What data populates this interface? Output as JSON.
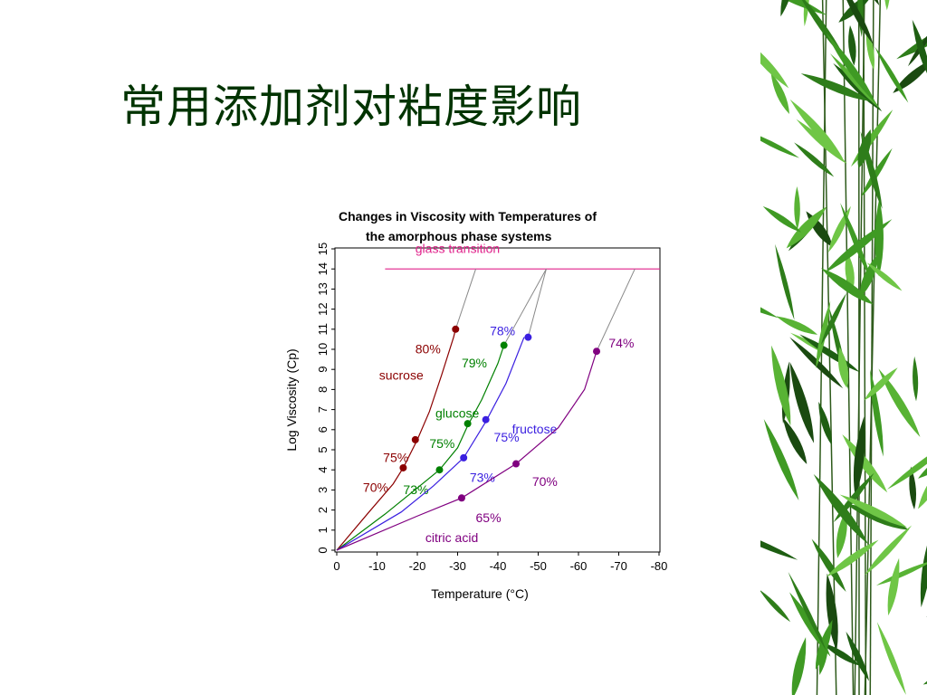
{
  "slide": {
    "title": "常用添加剂对粘度影响"
  },
  "chart_data": {
    "type": "line",
    "title_line1": "Changes in Viscosity with Temperatures of",
    "title_line2": "the amorphous phase systems",
    "xlabel": "Temperature (°C)",
    "ylabel": "Log Viscosity (Cp)",
    "xlim": [
      0,
      -80
    ],
    "ylim": [
      0,
      15
    ],
    "x_ticks": [
      0,
      -10,
      -20,
      -30,
      -40,
      -50,
      -60,
      -70,
      -80
    ],
    "y_ticks": [
      0,
      1,
      2,
      3,
      4,
      5,
      6,
      7,
      8,
      9,
      10,
      11,
      12,
      13,
      14,
      15
    ],
    "glass_transition": {
      "label": "glass transition",
      "y": 14,
      "x_from": -12,
      "x_to": -80,
      "color": "#e0218a"
    },
    "series": [
      {
        "name": "sucrose",
        "color": "#8b0000",
        "label_x": -10.5,
        "label_y": 8.5,
        "curve": [
          [
            0,
            0
          ],
          [
            -8,
            1.9
          ],
          [
            -14,
            3.3
          ],
          [
            -16.5,
            4.1
          ],
          [
            -20,
            5.5
          ],
          [
            -23,
            6.9
          ],
          [
            -26,
            8.7
          ],
          [
            -29,
            10.6
          ],
          [
            -29.5,
            11
          ]
        ],
        "points": [
          {
            "x": -16.5,
            "y": 4.1,
            "label": "70%",
            "lx": -6.5,
            "ly": 2.9
          },
          {
            "x": -19.5,
            "y": 5.5,
            "label": "75%",
            "lx": -11.5,
            "ly": 4.4
          },
          {
            "x": -29.5,
            "y": 11.0,
            "label": "80%",
            "lx": -19.5,
            "ly": 9.8
          }
        ],
        "extension": [
          [
            -29.5,
            11
          ],
          [
            -34.5,
            14
          ]
        ]
      },
      {
        "name": "glucose",
        "color": "#008000",
        "label_x": -24.5,
        "label_y": 6.6,
        "curve": [
          [
            0,
            0
          ],
          [
            -12,
            1.8
          ],
          [
            -20,
            3.1
          ],
          [
            -25.5,
            4
          ],
          [
            -30,
            5.1
          ],
          [
            -32.5,
            6.2
          ],
          [
            -36,
            7.5
          ],
          [
            -40,
            9.3
          ],
          [
            -41.5,
            10.2
          ]
        ],
        "points": [
          {
            "x": -25.5,
            "y": 4.0,
            "label": "73%",
            "lx": -16.5,
            "ly": 2.8
          },
          {
            "x": -32.5,
            "y": 6.3,
            "label": "75%",
            "lx": -23,
            "ly": 5.1
          },
          {
            "x": -41.5,
            "y": 10.2,
            "label": "79%",
            "lx": -31,
            "ly": 9.1
          }
        ],
        "extension": [
          [
            -41.5,
            10.2
          ],
          [
            -52,
            14
          ]
        ]
      },
      {
        "name": "fructose",
        "color": "#3a1fe0",
        "label_x": -43.5,
        "label_y": 5.8,
        "curve": [
          [
            0,
            0
          ],
          [
            -16,
            1.9
          ],
          [
            -24,
            3.2
          ],
          [
            -31.5,
            4.6
          ],
          [
            -37,
            6.4
          ],
          [
            -42,
            8.3
          ],
          [
            -46.5,
            10.6
          ]
        ],
        "points": [
          {
            "x": -31.5,
            "y": 4.6,
            "label": "73%",
            "lx": -33,
            "ly": 3.4
          },
          {
            "x": -37,
            "y": 6.5,
            "label": "75%",
            "lx": -39,
            "ly": 5.4
          },
          {
            "x": -47.5,
            "y": 10.6,
            "label": "78%",
            "lx": -38,
            "ly": 10.7
          }
        ],
        "extension": [
          [
            -47.5,
            10.6
          ],
          [
            -52,
            14
          ]
        ]
      },
      {
        "name": "citric acid",
        "color": "#800080",
        "label_x": -22,
        "label_y": 0.4,
        "curve": [
          [
            0,
            0
          ],
          [
            -20,
            1.7
          ],
          [
            -31,
            2.6
          ],
          [
            -44.5,
            4.3
          ],
          [
            -55,
            6.1
          ],
          [
            -61.5,
            8
          ],
          [
            -64.5,
            9.9
          ]
        ],
        "points": [
          {
            "x": -31,
            "y": 2.6,
            "label": "65%",
            "lx": -34.5,
            "ly": 1.4
          },
          {
            "x": -44.5,
            "y": 4.3,
            "label": "70%",
            "lx": -48.5,
            "ly": 3.2
          },
          {
            "x": -64.5,
            "y": 9.9,
            "label": "74%",
            "lx": -67.5,
            "ly": 10.1
          }
        ],
        "extension": [
          [
            -64.5,
            9.9
          ],
          [
            -74,
            14
          ]
        ]
      }
    ]
  }
}
